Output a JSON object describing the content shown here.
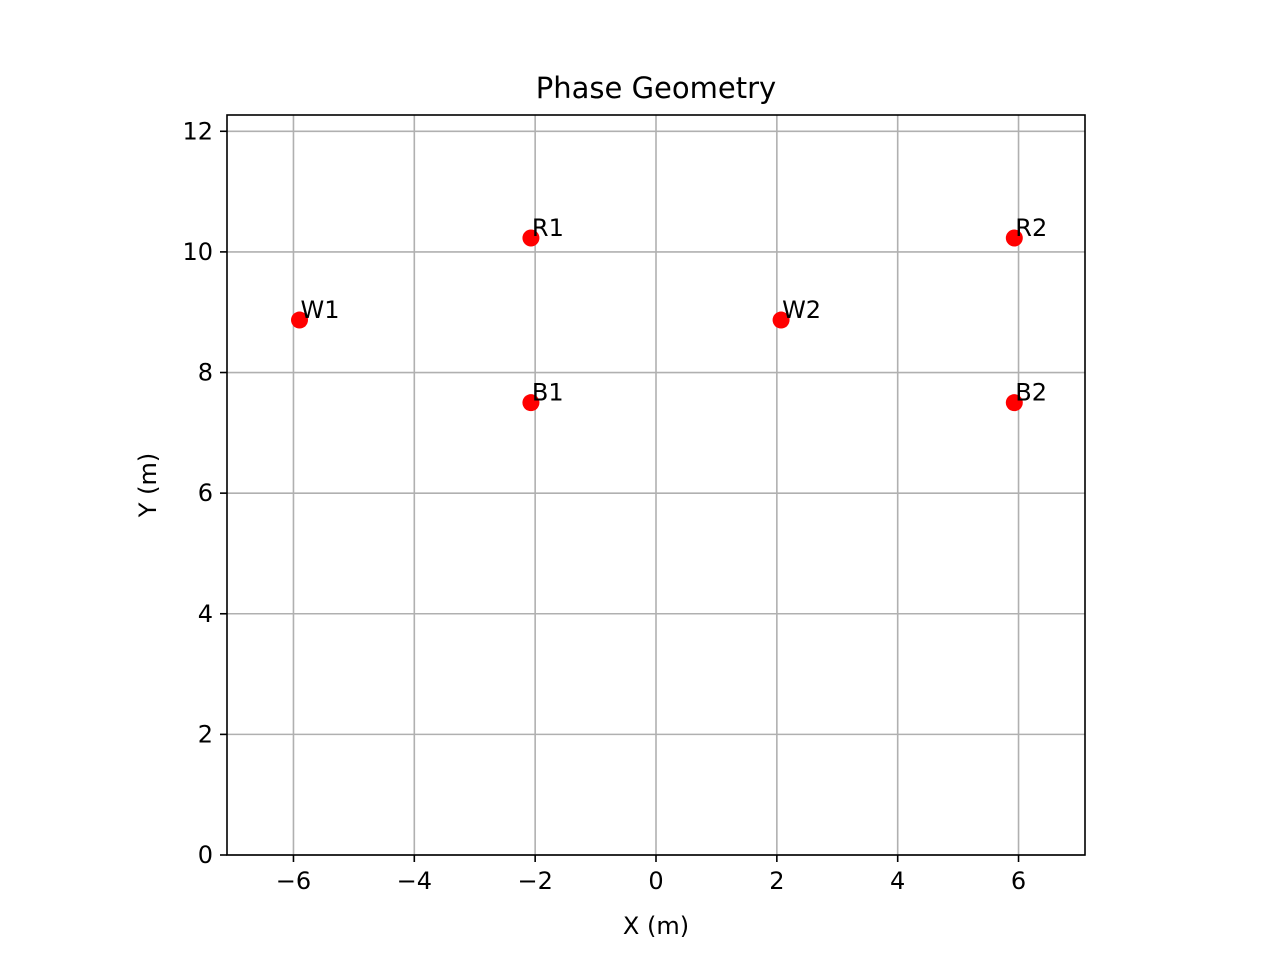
{
  "chart_data": {
    "type": "scatter",
    "title": "Phase Geometry",
    "xlabel": "X (m)",
    "ylabel": "Y (m)",
    "xlim": [
      -7.1,
      7.1
    ],
    "ylim": [
      0,
      12.27
    ],
    "xticks": [
      -6,
      -4,
      -2,
      0,
      2,
      4,
      6
    ],
    "xtick_labels": [
      "−6",
      "−4",
      "−2",
      "0",
      "2",
      "4",
      "6"
    ],
    "yticks": [
      0,
      2,
      4,
      6,
      8,
      10,
      12
    ],
    "ytick_labels": [
      "0",
      "2",
      "4",
      "6",
      "8",
      "10",
      "12"
    ],
    "grid": true,
    "marker_color": "#ff0000",
    "points": [
      {
        "label": "W1",
        "x": -5.9,
        "y": 8.87
      },
      {
        "label": "R1",
        "x": -2.07,
        "y": 10.23
      },
      {
        "label": "B1",
        "x": -2.07,
        "y": 7.5
      },
      {
        "label": "W2",
        "x": 2.07,
        "y": 8.87
      },
      {
        "label": "R2",
        "x": 5.93,
        "y": 10.23
      },
      {
        "label": "B2",
        "x": 5.93,
        "y": 7.5
      }
    ]
  }
}
